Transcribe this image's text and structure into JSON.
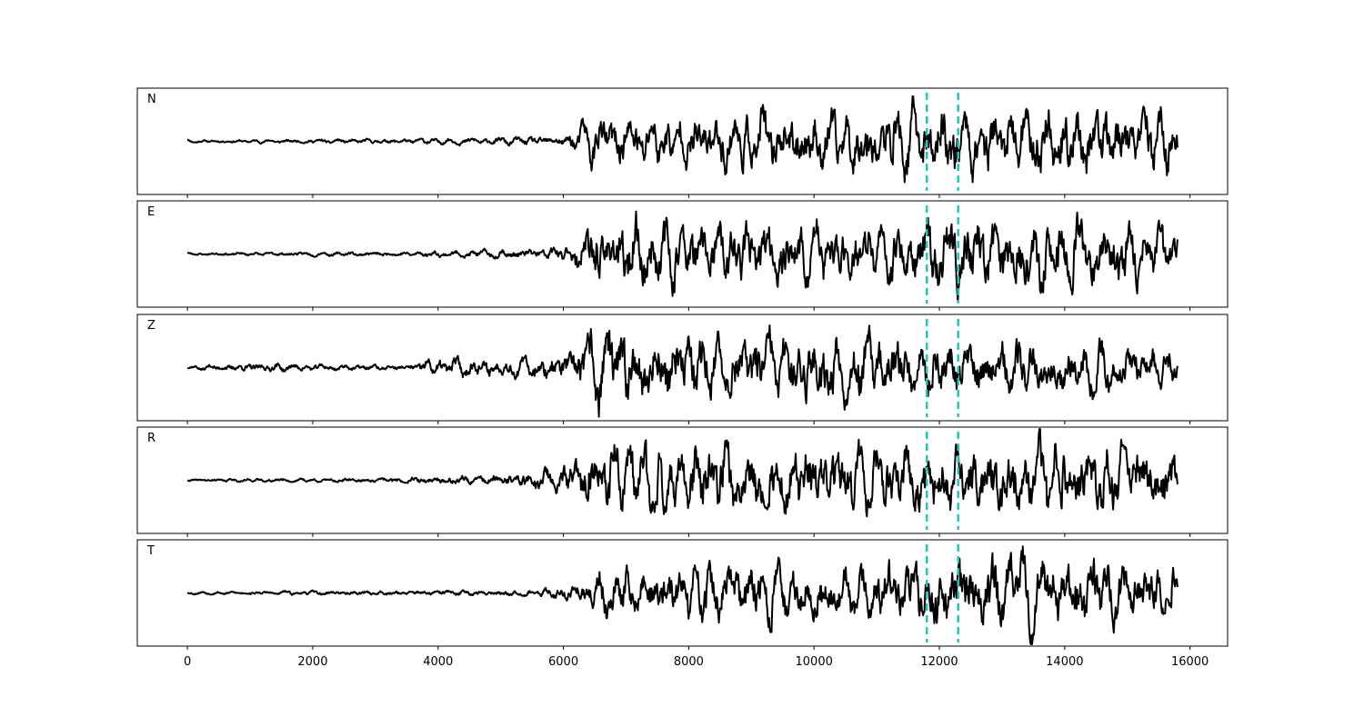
{
  "chart_data": {
    "type": "line",
    "title": "",
    "xlabel": "",
    "ylabel": "",
    "xlim": [
      -800,
      16600
    ],
    "x_ticks": [
      0,
      2000,
      4000,
      6000,
      8000,
      10000,
      12000,
      14000,
      16000
    ],
    "x_tick_labels": [
      "0",
      "2000",
      "4000",
      "6000",
      "8000",
      "10000",
      "12000",
      "14000",
      "16000"
    ],
    "x_range": [
      0,
      15800
    ],
    "picks": [
      11800,
      12300
    ],
    "colors": {
      "trace": "#000000",
      "pick": "#1ec8b4"
    },
    "grid": false,
    "legend": "none",
    "panels": [
      {
        "label": "N",
        "ylim": [
          -1.0,
          1.0
        ],
        "envelope": [
          [
            0,
            0.03
          ],
          [
            3000,
            0.05
          ],
          [
            5000,
            0.08
          ],
          [
            6000,
            0.12
          ],
          [
            6500,
            0.55
          ],
          [
            9000,
            0.65
          ],
          [
            11000,
            0.7
          ],
          [
            12000,
            0.75
          ],
          [
            14000,
            0.8
          ],
          [
            15800,
            0.65
          ]
        ],
        "seed": 11
      },
      {
        "label": "E",
        "ylim": [
          -1.0,
          1.0
        ],
        "envelope": [
          [
            0,
            0.03
          ],
          [
            3500,
            0.05
          ],
          [
            5500,
            0.12
          ],
          [
            6100,
            0.2
          ],
          [
            6400,
            0.75
          ],
          [
            9000,
            0.65
          ],
          [
            11000,
            0.7
          ],
          [
            12200,
            0.8
          ],
          [
            13500,
            0.8
          ],
          [
            15800,
            0.6
          ]
        ],
        "seed": 23
      },
      {
        "label": "Z",
        "ylim": [
          -1.0,
          1.0
        ],
        "envelope": [
          [
            0,
            0.03
          ],
          [
            500,
            0.08
          ],
          [
            1000,
            0.1
          ],
          [
            3500,
            0.05
          ],
          [
            3800,
            0.2
          ],
          [
            5500,
            0.2
          ],
          [
            6200,
            0.45
          ],
          [
            6500,
            0.9
          ],
          [
            9000,
            0.7
          ],
          [
            10600,
            0.85
          ],
          [
            12000,
            0.6
          ],
          [
            14000,
            0.6
          ],
          [
            15800,
            0.45
          ]
        ],
        "seed": 37
      },
      {
        "label": "R",
        "ylim": [
          -1.0,
          1.0
        ],
        "envelope": [
          [
            0,
            0.03
          ],
          [
            3000,
            0.05
          ],
          [
            5000,
            0.12
          ],
          [
            6000,
            0.3
          ],
          [
            6500,
            0.85
          ],
          [
            9000,
            0.75
          ],
          [
            11000,
            0.75
          ],
          [
            12300,
            0.7
          ],
          [
            13500,
            0.9
          ],
          [
            15800,
            0.65
          ]
        ],
        "seed": 41
      },
      {
        "label": "T",
        "ylim": [
          -1.0,
          1.0
        ],
        "envelope": [
          [
            0,
            0.03
          ],
          [
            3000,
            0.05
          ],
          [
            5500,
            0.07
          ],
          [
            6200,
            0.2
          ],
          [
            6600,
            0.55
          ],
          [
            9000,
            0.65
          ],
          [
            11000,
            0.65
          ],
          [
            12300,
            0.9
          ],
          [
            14400,
            0.85
          ],
          [
            15800,
            0.5
          ]
        ],
        "seed": 53
      }
    ]
  }
}
